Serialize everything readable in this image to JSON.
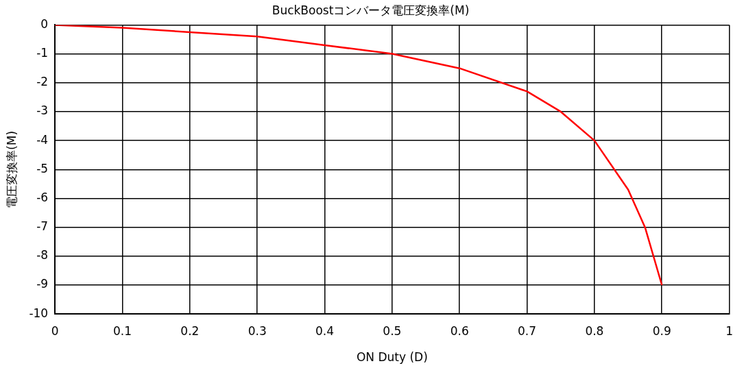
{
  "chart_data": {
    "type": "line",
    "title": "BuckBoostコンバータ電圧変換率(M)",
    "xlabel": "ON Duty (D)",
    "ylabel": "電圧変換率(M)",
    "x": [
      0,
      0.1,
      0.2,
      0.3,
      0.4,
      0.5,
      0.6,
      0.7,
      0.75,
      0.8,
      0.85,
      0.875,
      0.9
    ],
    "series": [
      {
        "color": "#ff0000",
        "values": [
          0,
          -0.1,
          -0.25,
          -0.4,
          -0.7,
          -1,
          -1.5,
          -2.3,
          -3,
          -4,
          -5.7,
          -7,
          -9
        ]
      }
    ],
    "xlim": [
      0,
      1
    ],
    "xticks": [
      0,
      0.1,
      0.2,
      0.3,
      0.4,
      0.5,
      0.6,
      0.7,
      0.8,
      0.9,
      1
    ],
    "ylim": [
      -10,
      0
    ],
    "yticks": [
      0,
      -1,
      -2,
      -3,
      -4,
      -5,
      -6,
      -7,
      -8,
      -9,
      -10
    ],
    "grid": true,
    "legend": false,
    "marker": "none",
    "line_style": "solid"
  }
}
